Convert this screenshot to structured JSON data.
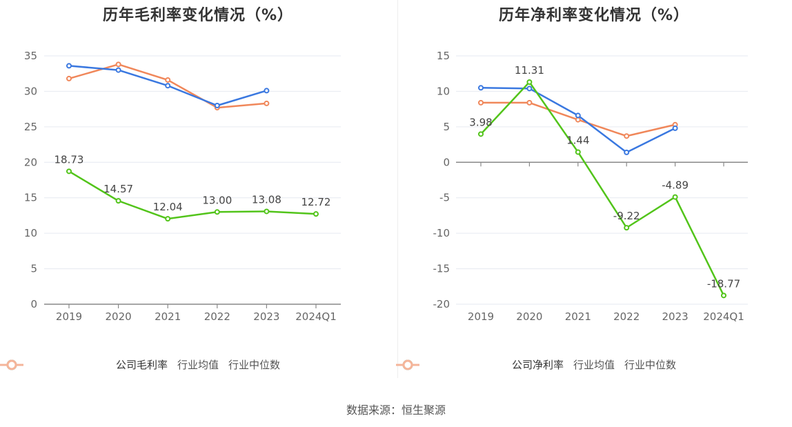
{
  "charts": {
    "gross": {
      "title": "历年毛利率变化情况（%）",
      "legend": [
        "公司毛利率",
        "行业均值",
        "行业中位数"
      ]
    },
    "net": {
      "title": "历年净利率变化情况（%）",
      "legend": [
        "公司净利率",
        "行业均值",
        "行业中位数"
      ]
    }
  },
  "source": "数据来源：恒生聚源",
  "colors": {
    "company": "#52c41a",
    "industry_avg": "#3a78e0",
    "industry_median": "#f0875a"
  },
  "chart_data": [
    {
      "type": "line",
      "title": "历年毛利率变化情况（%）",
      "categories": [
        "2019",
        "2020",
        "2021",
        "2022",
        "2023",
        "2024Q1"
      ],
      "ylim": [
        0,
        35
      ],
      "yticks": [
        0,
        5,
        10,
        15,
        20,
        25,
        30,
        35
      ],
      "grid": true,
      "legend_position": "bottom",
      "series": [
        {
          "name": "公司毛利率",
          "values": [
            18.73,
            14.57,
            12.04,
            13.0,
            13.08,
            12.72
          ],
          "labels": [
            "18.73",
            "14.57",
            "12.04",
            "13.00",
            "13.08",
            "12.72"
          ]
        },
        {
          "name": "行业均值",
          "values": [
            33.6,
            33.0,
            30.8,
            28.0,
            30.1,
            null
          ]
        },
        {
          "name": "行业中位数",
          "values": [
            31.8,
            33.8,
            31.6,
            27.7,
            28.3,
            null
          ]
        }
      ]
    },
    {
      "type": "line",
      "title": "历年净利率变化情况（%）",
      "categories": [
        "2019",
        "2020",
        "2021",
        "2022",
        "2023",
        "2024Q1"
      ],
      "ylim": [
        -20,
        15
      ],
      "yticks": [
        -20,
        -15,
        -10,
        -5,
        0,
        5,
        10,
        15
      ],
      "grid": true,
      "legend_position": "bottom",
      "series": [
        {
          "name": "公司净利率",
          "values": [
            3.98,
            11.31,
            1.44,
            -9.22,
            -4.89,
            -18.77
          ],
          "labels": [
            "3.98",
            "11.31",
            "1.44",
            "-9.22",
            "-4.89",
            "-18.77"
          ]
        },
        {
          "name": "行业均值",
          "values": [
            10.5,
            10.4,
            6.6,
            1.4,
            4.8,
            null
          ]
        },
        {
          "name": "行业中位数",
          "values": [
            8.4,
            8.4,
            6.0,
            3.7,
            5.3,
            null
          ]
        }
      ]
    }
  ]
}
